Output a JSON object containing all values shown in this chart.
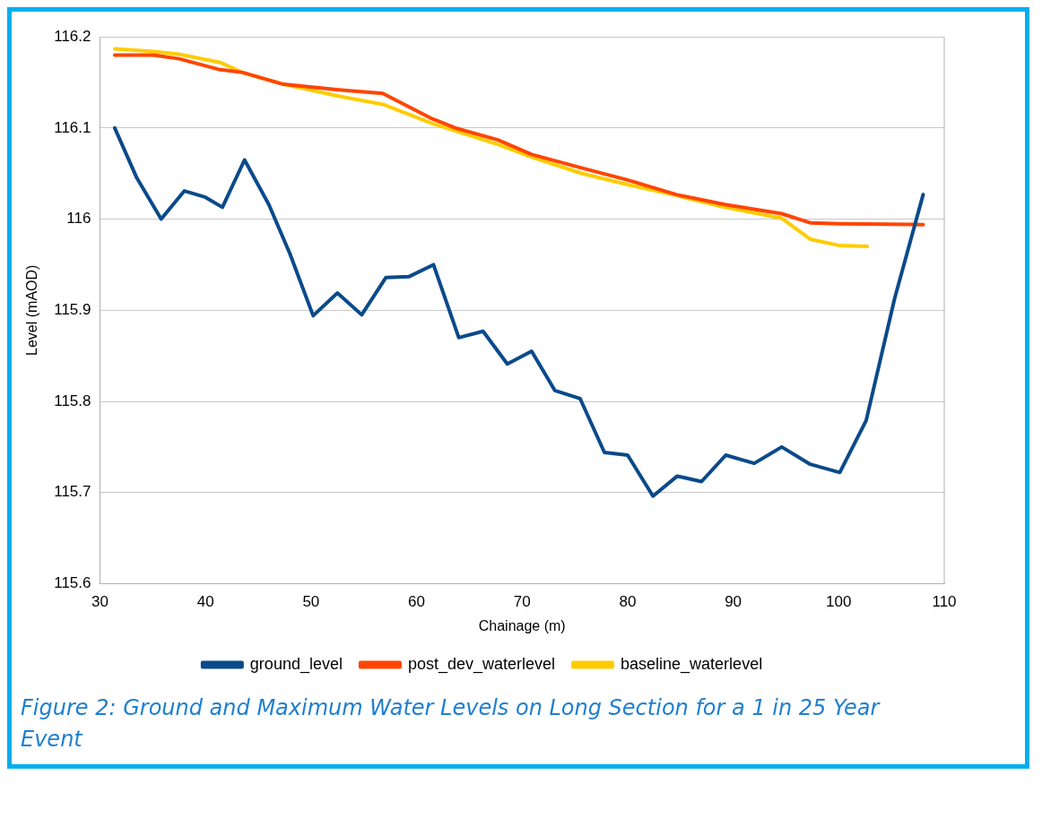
{
  "chart_data": {
    "type": "line",
    "xlabel": "Chainage (m)",
    "ylabel": "Level (mAOD)",
    "xlim": [
      30,
      110
    ],
    "xticks": [
      30,
      40,
      50,
      60,
      70,
      80,
      90,
      100,
      110
    ],
    "ylim": [
      115.6,
      116.2
    ],
    "yticks": [
      115.6,
      115.7,
      115.8,
      115.9,
      116,
      116.1,
      116.2
    ],
    "grid": "y",
    "legend": "bottom",
    "marker": "none",
    "line_style": "solid",
    "annotations": [
      "Figure 2: Ground and Maximum Water Levels on Long Section for a 1 in 25 Year Event"
    ],
    "series": [
      {
        "name": "ground_level",
        "color": "#0a4a8a",
        "x": [
          31.4,
          33.5,
          35.8,
          38.0,
          40.0,
          41.6,
          43.7,
          46.0,
          48.0,
          50.2,
          52.5,
          54.8,
          57.1,
          59.3,
          61.6,
          64.0,
          66.3,
          68.6,
          70.9,
          73.1,
          75.5,
          77.8,
          80.0,
          82.4,
          84.7,
          87.0,
          89.3,
          92.0,
          94.6,
          97.3,
          100.1,
          102.6,
          105.3,
          108.0
        ],
        "values": [
          116.1,
          116.045,
          116.0,
          116.031,
          116.024,
          116.013,
          116.065,
          116.016,
          115.962,
          115.894,
          115.919,
          115.895,
          115.936,
          115.937,
          115.95,
          115.87,
          115.877,
          115.841,
          115.855,
          115.812,
          115.803,
          115.744,
          115.741,
          115.696,
          115.718,
          115.712,
          115.741,
          115.732,
          115.75,
          115.731,
          115.722,
          115.779,
          115.913,
          116.027
        ]
      },
      {
        "name": "post_dev_waterlevel",
        "color": "#ff4500",
        "x": [
          31.4,
          35.1,
          37.5,
          41.4,
          43.5,
          47.4,
          52.6,
          56.8,
          61.5,
          63.7,
          67.7,
          70.9,
          75.7,
          80.0,
          84.6,
          89.2,
          94.6,
          97.3,
          100.1,
          108.0
        ],
        "values": [
          116.18,
          116.18,
          116.176,
          116.164,
          116.161,
          116.148,
          116.142,
          116.138,
          116.11,
          116.1,
          116.087,
          116.071,
          116.056,
          116.043,
          116.027,
          116.016,
          116.006,
          115.996,
          115.995,
          115.994
        ]
      },
      {
        "name": "baseline_waterlevel",
        "color": "#ffcc00",
        "x": [
          31.4,
          35.1,
          37.5,
          41.4,
          43.5,
          47.4,
          52.6,
          56.8,
          61.5,
          67.7,
          70.9,
          75.7,
          80.0,
          84.6,
          89.2,
          94.6,
          97.3,
          100.1,
          102.7
        ],
        "values": [
          116.187,
          116.184,
          116.181,
          116.172,
          116.161,
          116.148,
          116.135,
          116.126,
          116.105,
          116.082,
          116.068,
          116.05,
          116.038,
          116.026,
          116.013,
          116.001,
          115.978,
          115.971,
          115.97
        ]
      }
    ]
  }
}
